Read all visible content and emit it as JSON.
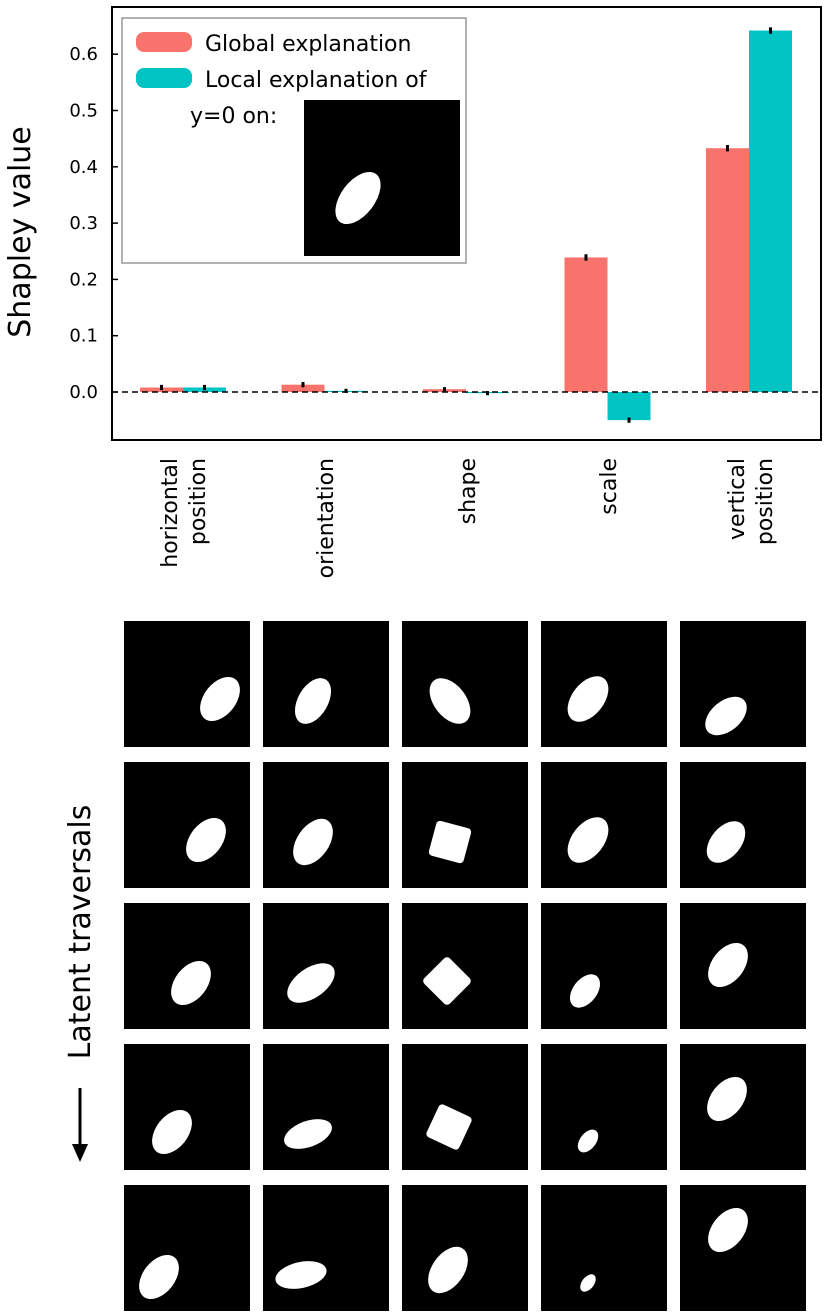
{
  "chart_data": {
    "type": "bar",
    "ylabel": "Shapley value",
    "ylim": [
      -0.1,
      0.68
    ],
    "yticks": [
      0.0,
      0.1,
      0.2,
      0.3,
      0.4,
      0.5,
      0.6
    ],
    "ytick_labels": [
      "0.0",
      "0.1",
      "0.2",
      "0.3",
      "0.4",
      "0.5",
      "0.6"
    ],
    "categories": [
      [
        "horizontal",
        "position"
      ],
      [
        "orientation"
      ],
      [
        "shape"
      ],
      [
        "scale"
      ],
      [
        "vertical",
        "position"
      ]
    ],
    "series": [
      {
        "name": "Global explanation",
        "color": "#F8736B",
        "values": [
          0.008,
          0.013,
          0.005,
          0.239,
          0.433
        ],
        "errors": [
          0.002,
          0.002,
          0.001,
          0.003,
          0.003
        ]
      },
      {
        "name": "Local explanation of",
        "color": "#00C4C4",
        "values": [
          0.008,
          0.002,
          -0.002,
          -0.05,
          0.642
        ],
        "errors": [
          0.002,
          0.001,
          0.001,
          0.002,
          0.003
        ]
      }
    ],
    "legend": {
      "entries": [
        "Global explanation",
        "Local explanation of"
      ],
      "extra": "y=0 on:",
      "placement": "top-left"
    },
    "zero_line": "dashed"
  },
  "traversals": {
    "label": "Latent traversals",
    "columns": [
      "horizontal position",
      "orientation",
      "shape",
      "scale",
      "vertical position"
    ]
  }
}
